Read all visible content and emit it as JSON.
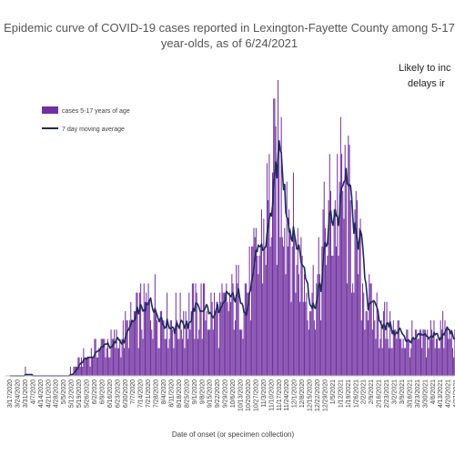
{
  "chart_data": {
    "type": "bar",
    "title": "Epidemic curve of COVID-19 cases reported in Lexington-Fayette County among 5-17 year-olds, as of 6/24/2021",
    "title_lines": [
      "Epidemic curve of COVID-19 cases reported in Lexington-Fayette County among 5-17",
      "year-olds, as of 6/24/2021"
    ],
    "annotation_lines": [
      "Likely to inc",
      "delays ir"
    ],
    "xlabel": "Date of onset (or specimen collection)",
    "ylabel": "",
    "ylim": [
      0,
      32
    ],
    "grid": false,
    "legend_position": "top-left",
    "bar_color": "#7030A0",
    "line_color": "#1F2A5C",
    "series": [
      {
        "name": "cases 5-17 years of age",
        "kind": "bar"
      },
      {
        "name": "7 day moving average",
        "kind": "line"
      }
    ],
    "x_tick_labels": [
      "3/17/2020",
      "3/24/2020",
      "3/31/2020",
      "4/7/2020",
      "4/14/2020",
      "4/21/2020",
      "4/28/2020",
      "5/5/2020",
      "5/12/2020",
      "5/19/2020",
      "5/26/2020",
      "6/2/2020",
      "6/9/2020",
      "6/16/2020",
      "6/23/2020",
      "6/30/2020",
      "7/7/2020",
      "7/14/2020",
      "7/21/2020",
      "7/28/2020",
      "8/4/2020",
      "8/11/2020",
      "8/18/2020",
      "8/25/2020",
      "9/1/2020",
      "9/8/2020",
      "9/15/2020",
      "9/22/2020",
      "9/29/2020",
      "10/6/2020",
      "10/13/2020",
      "10/20/2020",
      "10/27/2020",
      "11/3/2020",
      "11/10/2020",
      "11/17/2020",
      "11/24/2020",
      "12/1/2020",
      "12/8/2020",
      "12/15/2020",
      "12/22/2020",
      "12/29/2020",
      "1/5/2021",
      "1/12/2021",
      "1/19/2021",
      "1/26/2021",
      "2/2/2021",
      "2/9/2021",
      "2/16/2021",
      "2/23/2021",
      "3/2/2021",
      "3/9/2021",
      "3/16/2021",
      "3/23/2021",
      "3/30/2021",
      "4/6/2021",
      "4/13/2021",
      "4/20/2021",
      "4/27/2021"
    ],
    "weekly_moving_average": [
      0.1,
      0.3,
      0.4,
      0.2,
      0.2,
      0.1,
      0.1,
      0.2,
      0.4,
      1.2,
      2.2,
      3.0,
      3.4,
      3.2,
      3.6,
      4.8,
      5.6,
      6.6,
      7.6,
      7.4,
      6.8,
      6.2,
      6.0,
      6.6,
      7.2,
      7.4,
      6.8,
      6.6,
      7.0,
      8.0,
      8.6,
      9.6,
      11.6,
      15.6,
      19.6,
      22.8,
      20.6,
      14.0,
      11.6,
      8.6,
      9.6,
      15.0,
      18.6,
      19.4,
      17.6,
      14.0,
      9.6,
      7.2,
      6.0,
      5.4,
      4.6,
      4.4,
      4.0,
      3.6,
      4.0,
      4.4,
      4.8,
      4.4,
      3.8
    ]
  }
}
